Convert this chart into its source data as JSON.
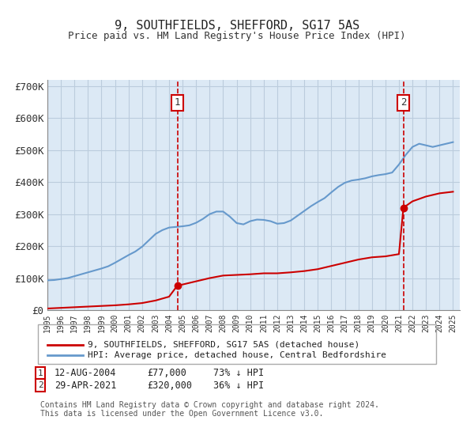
{
  "title": "9, SOUTHFIELDS, SHEFFORD, SG17 5AS",
  "subtitle": "Price paid vs. HM Land Registry's House Price Index (HPI)",
  "ylabel_ticks": [
    "£0",
    "£100K",
    "£200K",
    "£300K",
    "£400K",
    "£500K",
    "£600K",
    "£700K"
  ],
  "ytick_values": [
    0,
    100000,
    200000,
    300000,
    400000,
    500000,
    600000,
    700000
  ],
  "ylim": [
    0,
    720000
  ],
  "xlim_start": 1995.0,
  "xlim_end": 2025.5,
  "background_color": "#dce9f5",
  "plot_bg_color": "#dce9f5",
  "sale1_date": 2004.617,
  "sale1_price": 77000,
  "sale1_label": "12-AUG-2004",
  "sale2_date": 2021.33,
  "sale2_price": 320000,
  "sale2_label": "29-APR-2021",
  "legend_line1": "9, SOUTHFIELDS, SHEFFORD, SG17 5AS (detached house)",
  "legend_line2": "HPI: Average price, detached house, Central Bedfordshire",
  "footnote": "Contains HM Land Registry data © Crown copyright and database right 2024.\nThis data is licensed under the Open Government Licence v3.0.",
  "table_row1": "1    12-AUG-2004          £77,000        73% ↓ HPI",
  "table_row2": "2    29-APR-2021          £320,000      36% ↓ HPI",
  "hpi_years": [
    1995,
    1995.5,
    1996,
    1996.5,
    1997,
    1997.5,
    1998,
    1998.5,
    1999,
    1999.5,
    2000,
    2000.5,
    2001,
    2001.5,
    2002,
    2002.5,
    2003,
    2003.5,
    2004,
    2004.5,
    2005,
    2005.5,
    2006,
    2006.5,
    2007,
    2007.5,
    2008,
    2008.5,
    2009,
    2009.5,
    2010,
    2010.5,
    2011,
    2011.5,
    2012,
    2012.5,
    2013,
    2013.5,
    2014,
    2014.5,
    2015,
    2015.5,
    2016,
    2016.5,
    2017,
    2017.5,
    2018,
    2018.5,
    2019,
    2019.5,
    2020,
    2020.5,
    2021,
    2021.5,
    2022,
    2022.5,
    2023,
    2023.5,
    2024,
    2024.5,
    2025
  ],
  "hpi_values": [
    93000,
    94000,
    97000,
    100000,
    106000,
    112000,
    118000,
    124000,
    130000,
    137000,
    148000,
    160000,
    172000,
    183000,
    198000,
    218000,
    238000,
    250000,
    258000,
    260000,
    262000,
    265000,
    273000,
    285000,
    300000,
    308000,
    308000,
    292000,
    272000,
    268000,
    278000,
    283000,
    282000,
    278000,
    270000,
    272000,
    280000,
    295000,
    310000,
    325000,
    338000,
    350000,
    368000,
    385000,
    398000,
    405000,
    408000,
    412000,
    418000,
    422000,
    425000,
    430000,
    455000,
    485000,
    510000,
    520000,
    515000,
    510000,
    515000,
    520000,
    525000
  ],
  "red_years": [
    1995,
    1996,
    1997,
    1998,
    1999,
    2000,
    2001,
    2002,
    2003,
    2004,
    2004.617,
    2005,
    2006,
    2007,
    2008,
    2009,
    2010,
    2011,
    2012,
    2013,
    2014,
    2015,
    2016,
    2017,
    2018,
    2019,
    2020,
    2021,
    2021.33,
    2022,
    2023,
    2024,
    2025
  ],
  "red_values": [
    5000,
    7000,
    9000,
    11000,
    13000,
    15000,
    18000,
    22000,
    30000,
    42000,
    77000,
    80000,
    90000,
    100000,
    108000,
    110000,
    112000,
    115000,
    115000,
    118000,
    122000,
    128000,
    138000,
    148000,
    158000,
    165000,
    168000,
    175000,
    320000,
    340000,
    355000,
    365000,
    370000
  ],
  "red_color": "#cc0000",
  "blue_color": "#6699cc",
  "vline_color": "#cc0000",
  "box_color": "#cc0000",
  "grid_color": "#bbccdd"
}
